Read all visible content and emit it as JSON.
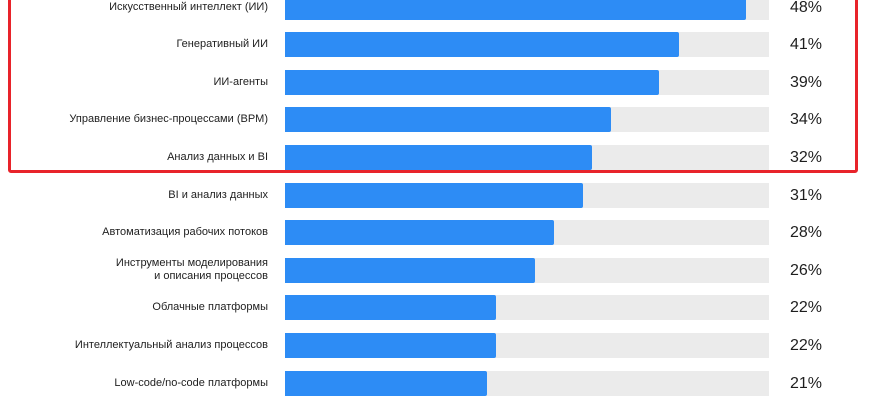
{
  "chart_data": {
    "type": "bar",
    "orientation": "horizontal",
    "categories": [
      "Искусственный интеллект (ИИ)",
      "Генеративный ИИ",
      "ИИ-агенты",
      "Управление бизнес-процессами (BPM)",
      "Анализ данных и BI",
      "BI и анализ данных",
      "Автоматизация рабочих потоков",
      "Инструменты моделирования\nи описания процессов",
      "Облачные платформы",
      "Интеллектуальный анализ процессов",
      "Low-code/no-code платформы"
    ],
    "values": [
      48,
      41,
      39,
      34,
      32,
      31,
      28,
      26,
      22,
      22,
      21
    ],
    "value_labels": [
      "48%",
      "41%",
      "39%",
      "34%",
      "32%",
      "31%",
      "28%",
      "26%",
      "22%",
      "22%",
      "21%"
    ],
    "xlim": [
      0,
      50
    ],
    "highlighted_rows": [
      0,
      1,
      2,
      3,
      4
    ],
    "grid": false,
    "legend": "none"
  },
  "colors": {
    "bar": "#2d8cf5",
    "track": "#ebebeb",
    "highlight": "#e8232a",
    "text": "#1e1e1e"
  }
}
